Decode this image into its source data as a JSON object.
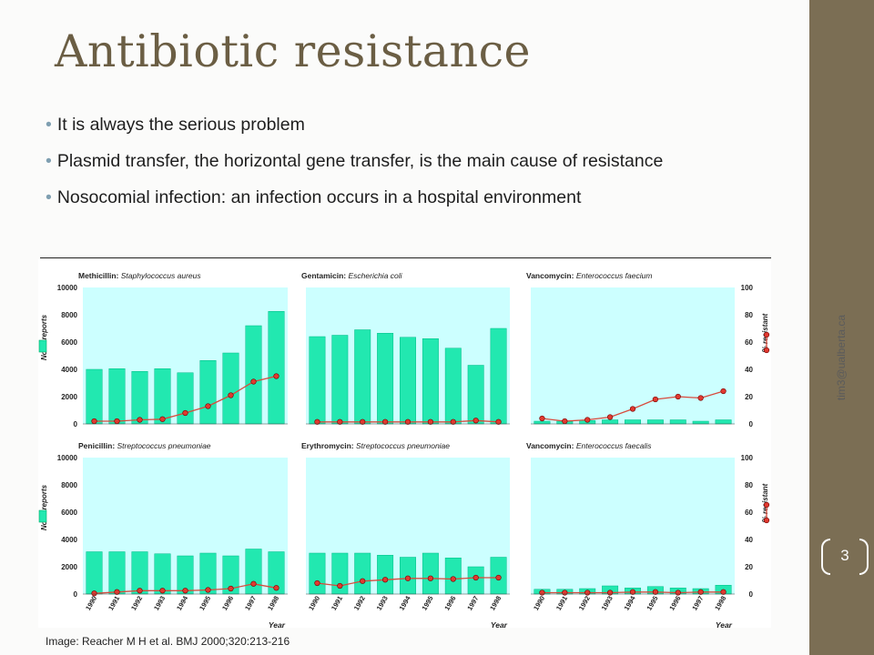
{
  "slide": {
    "title": "Antibiotic resistance",
    "bullets": [
      "It is always the serious problem",
      "Plasmid transfer, the horizontal gene transfer, is the main cause of resistance",
      "Nosocomial infection: an infection occurs in a hospital environment"
    ],
    "caption": "Image: Reacher M H et al. BMJ 2000;320:213-216",
    "side_text": "tim3@ualberta.ca",
    "page_number": "3"
  },
  "colors": {
    "title": "#6b5e44",
    "side_band": "#7b6e54",
    "panel_bg": "#ccffff",
    "bar_fill": "#22e8b0",
    "line": "#d84a3c",
    "marker": "#e03a30"
  },
  "chart_axes": {
    "reports_label": "No of reports",
    "resistant_label": "% resistant",
    "x_label": "Year",
    "reports_ticks": [
      "0",
      "2000",
      "4000",
      "6000",
      "8000",
      "10000"
    ],
    "resistant_ticks": [
      "0",
      "20",
      "40",
      "60",
      "80",
      "100"
    ],
    "years": [
      "1990",
      "1991",
      "1992",
      "1993",
      "1994",
      "1995",
      "1996",
      "1997",
      "1998"
    ]
  },
  "chart_data": [
    {
      "type": "bar",
      "title_drug": "Methicillin:",
      "title_organism": "Staphylococcus aureus",
      "categories": [
        "1990",
        "1991",
        "1992",
        "1993",
        "1994",
        "1995",
        "1996",
        "1997",
        "1998"
      ],
      "ylabel": "No of reports",
      "y2label": "% resistant",
      "ylim": [
        0,
        10000
      ],
      "y2lim": [
        0,
        100
      ],
      "series": [
        {
          "name": "No of reports",
          "type": "bar",
          "axis": "left",
          "values": [
            4000,
            4050,
            3850,
            4050,
            3750,
            4650,
            5200,
            7200,
            8250
          ]
        },
        {
          "name": "% resistant",
          "type": "line",
          "axis": "right",
          "values": [
            2,
            2,
            3,
            3.5,
            8,
            13,
            21,
            31,
            35
          ]
        }
      ]
    },
    {
      "type": "bar",
      "title_drug": "Gentamicin:",
      "title_organism": "Escherichia coli",
      "categories": [
        "1990",
        "1991",
        "1992",
        "1993",
        "1994",
        "1995",
        "1996",
        "1997",
        "1998"
      ],
      "ylabel": "No of reports",
      "y2label": "% resistant",
      "ylim": [
        0,
        10000
      ],
      "y2lim": [
        0,
        100
      ],
      "series": [
        {
          "name": "No of reports",
          "type": "bar",
          "axis": "left",
          "values": [
            6400,
            6500,
            6900,
            6650,
            6350,
            6250,
            5550,
            4300,
            7000
          ]
        },
        {
          "name": "% resistant",
          "type": "line",
          "axis": "right",
          "values": [
            1.5,
            1.5,
            1.5,
            1.5,
            1.5,
            1.5,
            1.5,
            2.5,
            1.5
          ]
        }
      ]
    },
    {
      "type": "bar",
      "title_drug": "Vancomycin:",
      "title_organism": "Enterococcus faecium",
      "categories": [
        "1990",
        "1991",
        "1992",
        "1993",
        "1994",
        "1995",
        "1996",
        "1997",
        "1998"
      ],
      "ylabel": "No of reports",
      "y2label": "% resistant",
      "ylim": [
        0,
        10000
      ],
      "y2lim": [
        0,
        100
      ],
      "series": [
        {
          "name": "No of reports",
          "type": "bar",
          "axis": "left",
          "values": [
            200,
            200,
            250,
            300,
            300,
            300,
            300,
            200,
            300
          ]
        },
        {
          "name": "% resistant",
          "type": "line",
          "axis": "right",
          "values": [
            4,
            2,
            3,
            5,
            11,
            18,
            20,
            19,
            24
          ]
        }
      ]
    },
    {
      "type": "bar",
      "title_drug": "Penicillin:",
      "title_organism": "Streptococcus pneumoniae",
      "categories": [
        "1990",
        "1991",
        "1992",
        "1993",
        "1994",
        "1995",
        "1996",
        "1997",
        "1998"
      ],
      "ylabel": "No of reports",
      "y2label": "% resistant",
      "ylim": [
        0,
        10000
      ],
      "y2lim": [
        0,
        100
      ],
      "series": [
        {
          "name": "No of reports",
          "type": "bar",
          "axis": "left",
          "values": [
            3100,
            3100,
            3100,
            2950,
            2800,
            3000,
            2800,
            3300,
            3100
          ]
        },
        {
          "name": "% resistant",
          "type": "line",
          "axis": "right",
          "values": [
            0.5,
            1.5,
            2.5,
            2.5,
            2.5,
            3,
            4,
            7.5,
            4.5
          ]
        }
      ]
    },
    {
      "type": "bar",
      "title_drug": "Erythromycin:",
      "title_organism": "Streptococcus pneumoniae",
      "categories": [
        "1990",
        "1991",
        "1992",
        "1993",
        "1994",
        "1995",
        "1996",
        "1997",
        "1998"
      ],
      "ylabel": "No of reports",
      "y2label": "% resistant",
      "ylim": [
        0,
        10000
      ],
      "y2lim": [
        0,
        100
      ],
      "series": [
        {
          "name": "No of reports",
          "type": "bar",
          "axis": "left",
          "values": [
            3000,
            3000,
            3000,
            2850,
            2700,
            3000,
            2650,
            2000,
            2700
          ]
        },
        {
          "name": "% resistant",
          "type": "line",
          "axis": "right",
          "values": [
            8,
            6,
            9.5,
            10.5,
            11.5,
            11.5,
            11,
            12,
            12
          ]
        }
      ]
    },
    {
      "type": "bar",
      "title_drug": "Vancomycin:",
      "title_organism": "Enterococcus faecalis",
      "categories": [
        "1990",
        "1991",
        "1992",
        "1993",
        "1994",
        "1995",
        "1996",
        "1997",
        "1998"
      ],
      "ylabel": "No of reports",
      "y2label": "% resistant",
      "ylim": [
        0,
        10000
      ],
      "y2lim": [
        0,
        100
      ],
      "series": [
        {
          "name": "No of reports",
          "type": "bar",
          "axis": "left",
          "values": [
            350,
            350,
            400,
            600,
            450,
            550,
            450,
            400,
            650
          ]
        },
        {
          "name": "% resistant",
          "type": "line",
          "axis": "right",
          "values": [
            1,
            1,
            1,
            1,
            1.5,
            1.5,
            1,
            1.5,
            1.5
          ]
        }
      ]
    }
  ]
}
